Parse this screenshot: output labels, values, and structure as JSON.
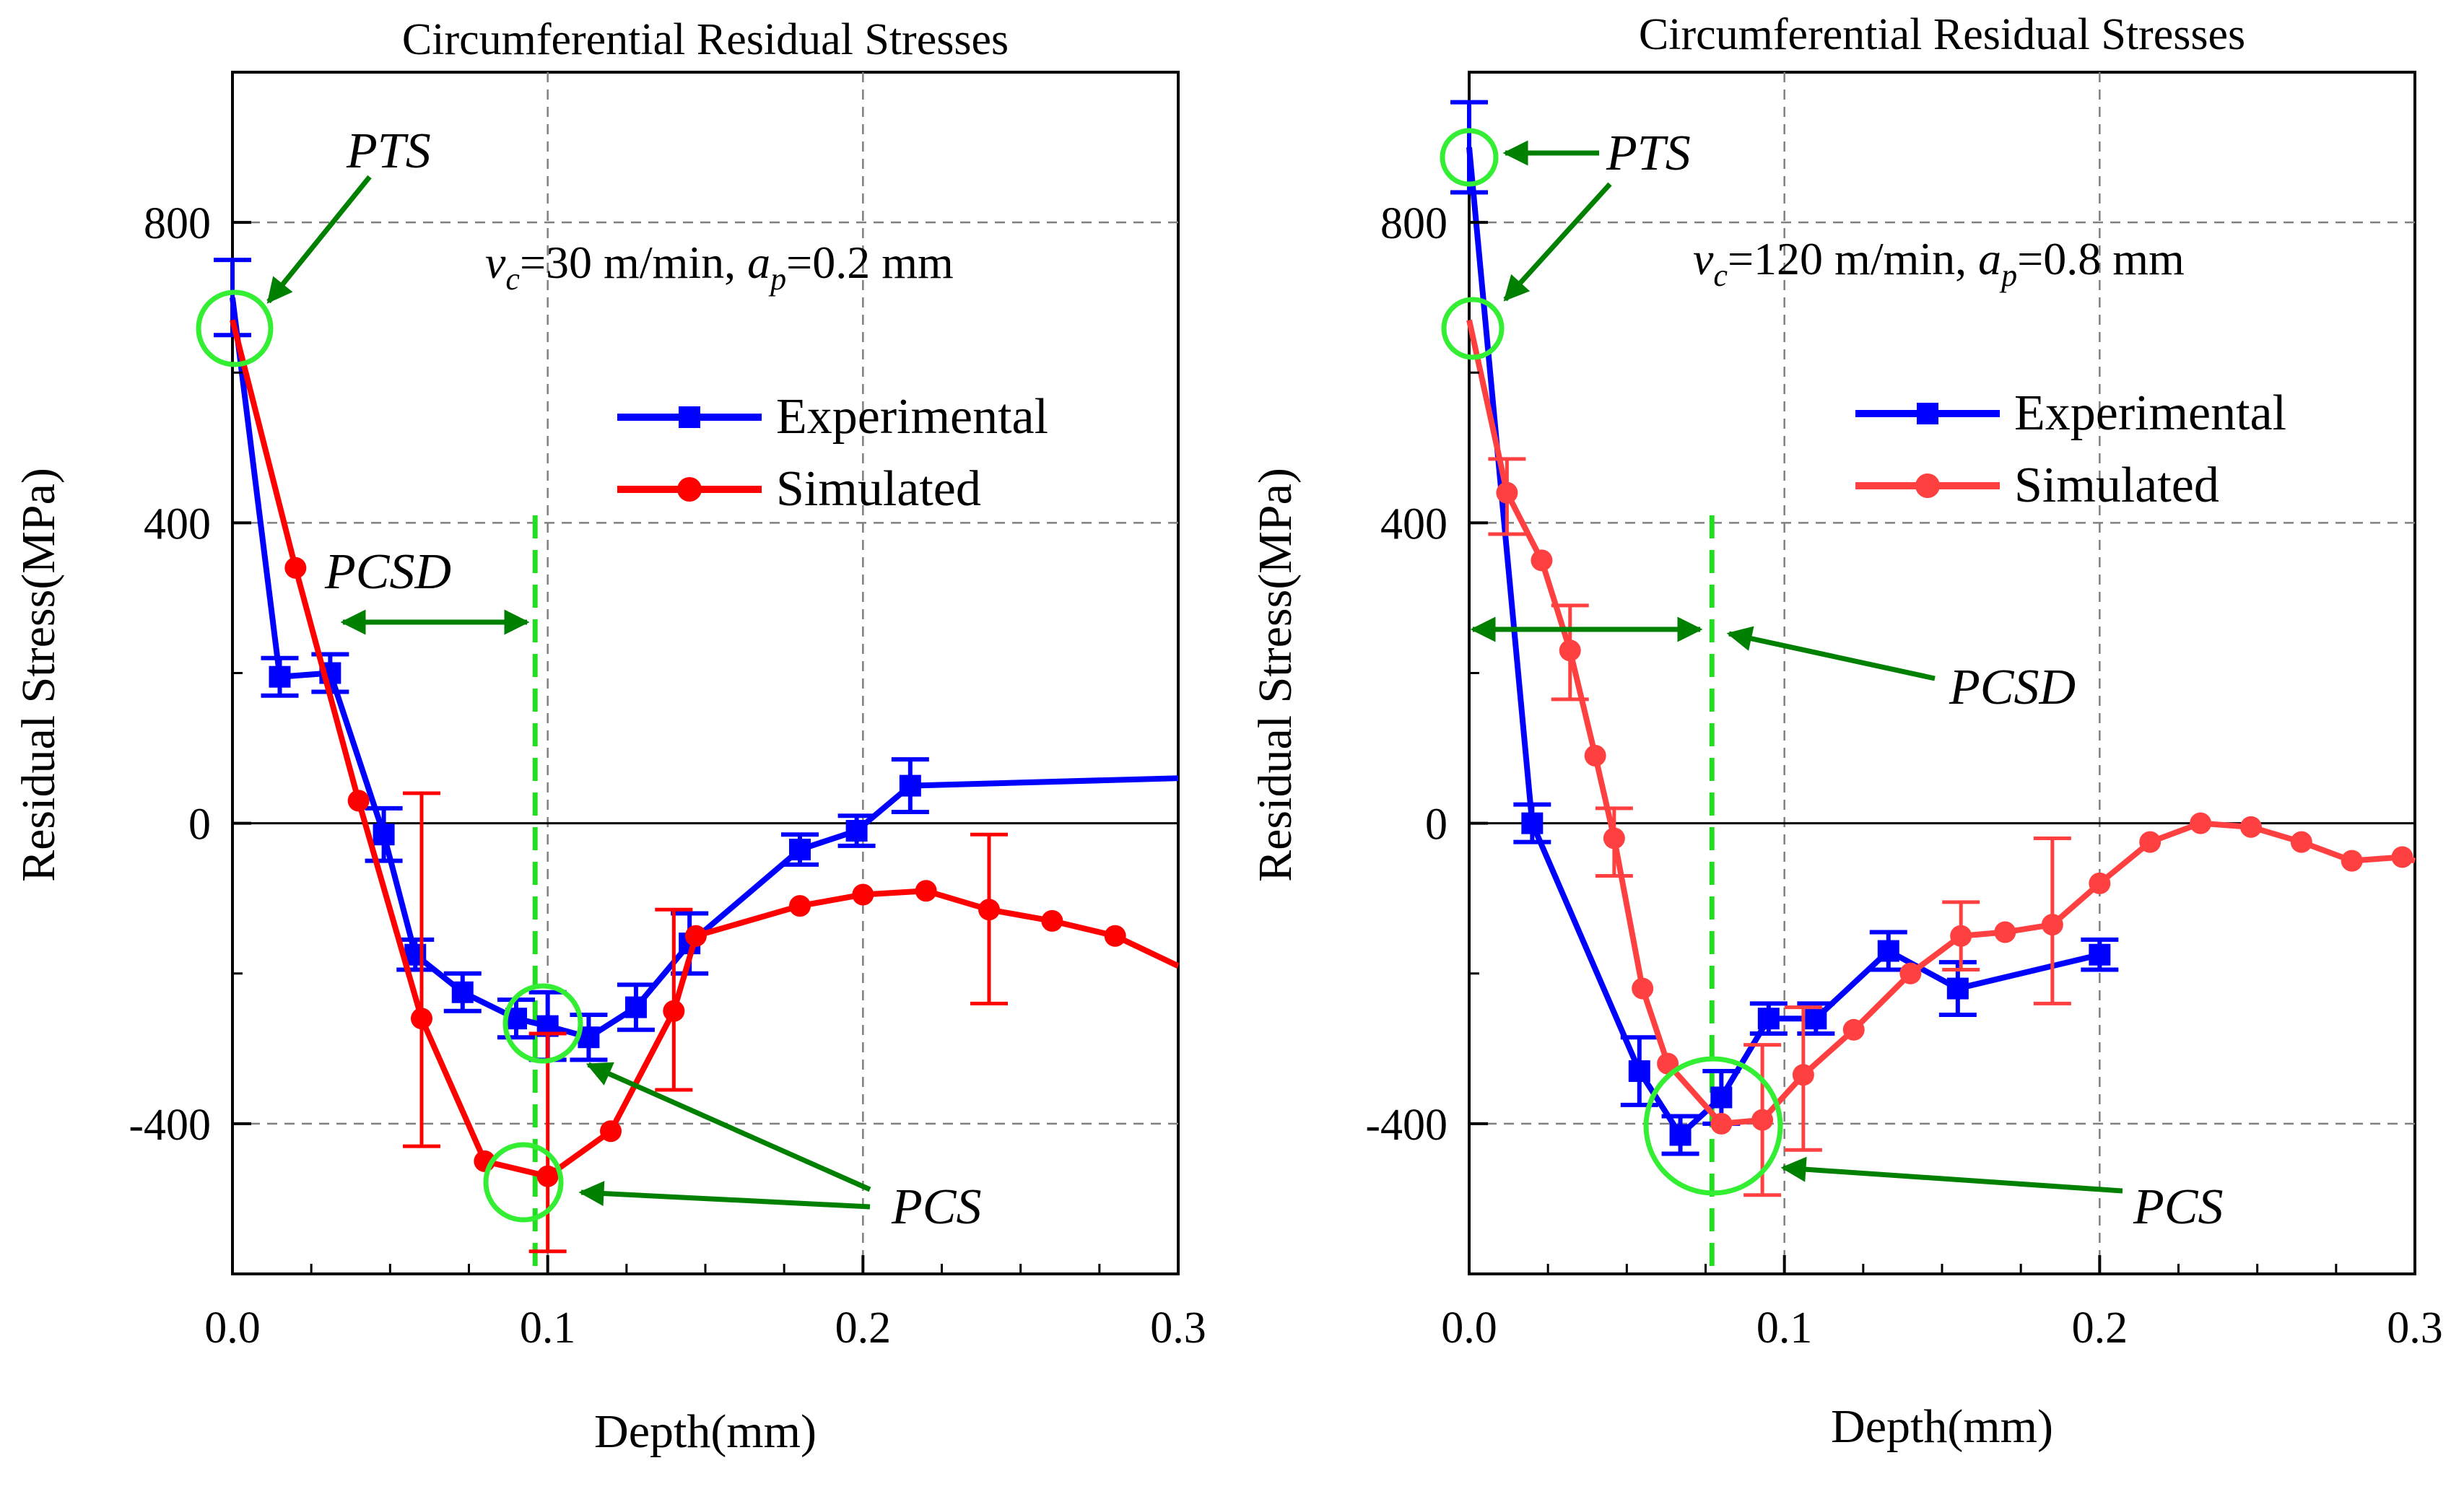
{
  "colors": {
    "experimental": "#0000ff",
    "simulated_left": "#ff0000",
    "simulated_right": "#ff4040",
    "annotation": "#008000",
    "marker_circle": "#33ee33",
    "dashed_green": "#22dd22",
    "grid": "#808080"
  },
  "chart_data": [
    {
      "type": "line",
      "title": "Circumferential Residual Stresses",
      "xlabel": "Depth(mm)",
      "ylabel": "Residual Stress(MPa)",
      "xlim": [
        0,
        0.3
      ],
      "ylim": [
        -600,
        1000
      ],
      "xticks": [
        "0.0",
        "0.1",
        "0.2",
        "0.3"
      ],
      "yticks": [
        "800",
        "400",
        "0",
        "-400"
      ],
      "condition": {
        "v": "v",
        "vsub": "c",
        "veq": "=30 m/min, ",
        "a": "a",
        "asub": "p",
        "aeq": "=0.2 mm"
      },
      "legend": [
        "Experimental",
        "Simulated"
      ],
      "series": [
        {
          "name": "Experimental",
          "x": [
            0.0,
            0.015,
            0.031,
            0.048,
            0.058,
            0.073,
            0.09,
            0.1,
            0.113,
            0.128,
            0.145,
            0.18,
            0.198,
            0.215,
            0.3
          ],
          "y": [
            700,
            195,
            200,
            -15,
            -175,
            -225,
            -260,
            -270,
            -285,
            -245,
            -160,
            -35,
            -10,
            50,
            60
          ],
          "err": [
            50,
            25,
            25,
            35,
            20,
            25,
            25,
            45,
            30,
            30,
            40,
            20,
            20,
            35,
            0
          ]
        },
        {
          "name": "Simulated",
          "x": [
            0.0,
            0.02,
            0.04,
            0.06,
            0.08,
            0.1,
            0.12,
            0.14,
            0.147,
            0.18,
            0.2,
            0.22,
            0.24,
            0.26,
            0.28,
            0.3
          ],
          "y": [
            670,
            340,
            30,
            -260,
            -450,
            -470,
            -410,
            -250,
            -150,
            -110,
            -95,
            -90,
            -115,
            -130,
            -150,
            -190
          ],
          "err_x": [
            0.06,
            0.1,
            0.14,
            0.24
          ],
          "err_lo": [
            -430,
            -570,
            -355,
            -240
          ],
          "err_hi": [
            40,
            -280,
            -115,
            -15
          ]
        }
      ],
      "annotations": [
        "PTS",
        "PCSD",
        "PCS"
      ],
      "pcsd_depth": 0.096
    },
    {
      "type": "line",
      "title": "Circumferential Residual Stresses",
      "xlabel": "Depth(mm)",
      "ylabel": "Residual Stress(MPa)",
      "xlim": [
        0,
        0.3
      ],
      "ylim": [
        -600,
        1000
      ],
      "xticks": [
        "0.0",
        "0.1",
        "0.2",
        "0.3"
      ],
      "yticks": [
        "800",
        "400",
        "0",
        "-400"
      ],
      "condition": {
        "v": "v",
        "vsub": "c",
        "veq": "=120 m/min, ",
        "a": "a",
        "asub": "p",
        "aeq": "=0.8 mm"
      },
      "legend": [
        "Experimental",
        "Simulated"
      ],
      "series": [
        {
          "name": "Experimental",
          "x": [
            0.0,
            0.02,
            0.054,
            0.067,
            0.08,
            0.095,
            0.11,
            0.133,
            0.155,
            0.2
          ],
          "y": [
            900,
            0,
            -330,
            -415,
            -365,
            -260,
            -260,
            -170,
            -220,
            -175
          ],
          "err": [
            60,
            25,
            45,
            25,
            35,
            20,
            20,
            25,
            35,
            20
          ]
        },
        {
          "name": "Simulated",
          "x": [
            0.0,
            0.012,
            0.023,
            0.032,
            0.04,
            0.046,
            0.055,
            0.063,
            0.08,
            0.093,
            0.106,
            0.122,
            0.14,
            0.156,
            0.17,
            0.185,
            0.2,
            0.216,
            0.232,
            0.248,
            0.264,
            0.28,
            0.296,
            0.3
          ],
          "y": [
            670,
            440,
            350,
            230,
            90,
            -20,
            -220,
            -320,
            -400,
            -395,
            -335,
            -275,
            -200,
            -150,
            -145,
            -135,
            -80,
            -25,
            0,
            -5,
            -25,
            -50,
            -45,
            -50
          ],
          "err_x": [
            0.012,
            0.032,
            0.046,
            0.093,
            0.106,
            0.156,
            0.185
          ],
          "err_lo": [
            385,
            165,
            -70,
            -495,
            -435,
            -195,
            -240
          ],
          "err_hi": [
            485,
            290,
            20,
            -295,
            -245,
            -105,
            -20
          ]
        }
      ],
      "annotations": [
        "PTS",
        "PCSD",
        "PCS"
      ],
      "pcsd_depth": 0.077
    }
  ]
}
